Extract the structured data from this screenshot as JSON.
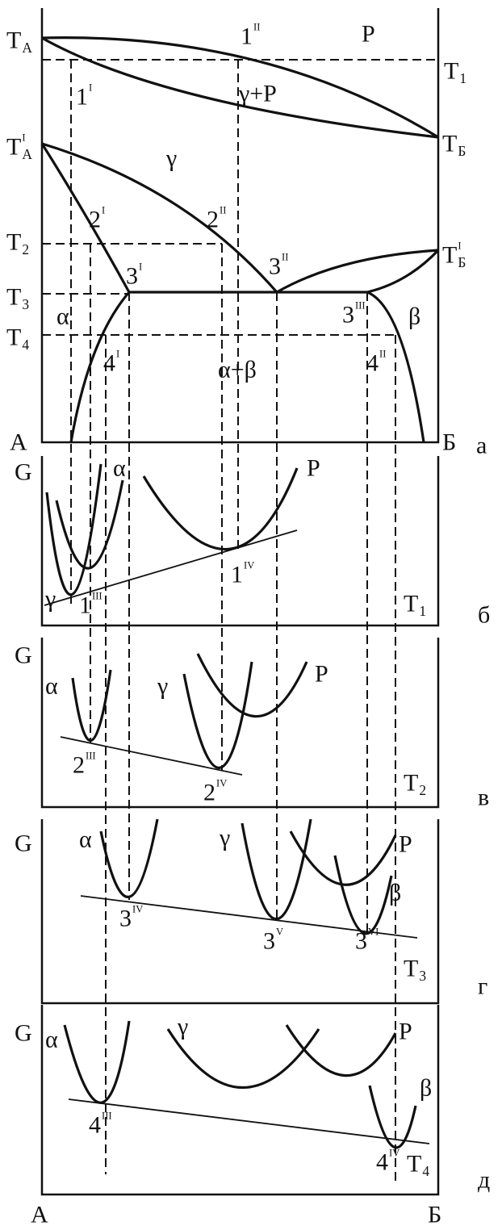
{
  "diagram_a": {
    "label": "а",
    "left": "A",
    "right": "Б",
    "temperatures": [
      {
        "base": "T",
        "sub": "A"
      },
      {
        "base": "T",
        "sub": "1"
      },
      {
        "base": "T",
        "sub": "A",
        "sup": "I"
      },
      {
        "base": "T",
        "sub": "Б"
      },
      {
        "base": "T",
        "sub": "2"
      },
      {
        "base": "T",
        "sub": "Б",
        "sup": "I"
      },
      {
        "base": "T",
        "sub": "3"
      },
      {
        "base": "T",
        "sub": "4"
      }
    ],
    "regions": [
      "P",
      "γ+P",
      "γ",
      "α",
      "β",
      "α+β"
    ],
    "points": [
      {
        "base": "1",
        "sup": "I"
      },
      {
        "base": "1",
        "sup": "II"
      },
      {
        "base": "2",
        "sup": "I"
      },
      {
        "base": "2",
        "sup": "II"
      },
      {
        "base": "3",
        "sup": "I"
      },
      {
        "base": "3",
        "sup": "II"
      },
      {
        "base": "3",
        "sup": "III"
      },
      {
        "base": "4",
        "sup": "I"
      },
      {
        "base": "4",
        "sup": "II"
      }
    ]
  },
  "energy_panels": [
    {
      "label": "б",
      "axis": "G",
      "temperature": {
        "base": "T",
        "sub": "1"
      },
      "phases": [
        "α",
        "P",
        "γ"
      ],
      "points": [
        {
          "base": "1",
          "sup": "III"
        },
        {
          "base": "1",
          "sup": "IV"
        }
      ]
    },
    {
      "label": "в",
      "axis": "G",
      "temperature": {
        "base": "T",
        "sub": "2"
      },
      "phases": [
        "α",
        "γ",
        "P"
      ],
      "points": [
        {
          "base": "2",
          "sup": "III"
        },
        {
          "base": "2",
          "sup": "IV"
        }
      ]
    },
    {
      "label": "г",
      "axis": "G",
      "temperature": {
        "base": "T",
        "sub": "3"
      },
      "phases": [
        "α",
        "γ",
        "P",
        "β"
      ],
      "points": [
        {
          "base": "3",
          "sup": "IV"
        },
        {
          "base": "3",
          "sup": "V"
        },
        {
          "base": "3",
          "sup": "VI"
        }
      ]
    },
    {
      "label": "д",
      "axis": "G",
      "temperature": {
        "base": "T",
        "sub": "4"
      },
      "phases": [
        "α",
        "γ",
        "P",
        "β"
      ],
      "points": [
        {
          "base": "4",
          "sup": "III"
        },
        {
          "base": "4",
          "sup": "IV"
        }
      ]
    }
  ],
  "bottom": {
    "left": "A",
    "right": "Б"
  }
}
